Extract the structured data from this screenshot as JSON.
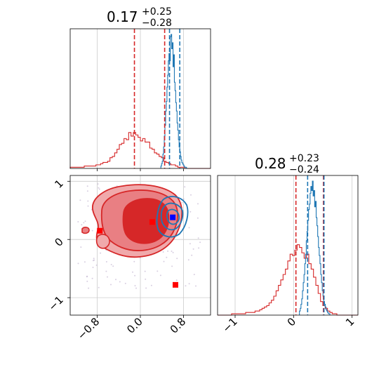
{
  "chart_data": {
    "type": "corner",
    "colors": {
      "red": "#d62728",
      "blue": "#1f77b4",
      "marker_red": "#ff0000",
      "marker_blue": "#0000ff",
      "grid": "#cccccc"
    },
    "panels": [
      {
        "id": "hist-x",
        "type": "histogram",
        "title": {
          "value": "0.17",
          "plus": "+0.25",
          "minus": "−0.28"
        },
        "xlim": [
          -1.3,
          1.3
        ],
        "xgrid": [
          -0.8,
          0,
          0.8
        ],
        "series": [
          {
            "color": "red",
            "bin_edges_range": [
              -1.3,
              1.3
            ],
            "bins": 60,
            "counts": [
              1,
              1,
              1,
              1,
              1,
              1,
              2,
              2,
              2,
              2,
              2,
              3,
              3,
              4,
              5,
              5,
              6,
              9,
              10,
              13,
              16,
              20,
              21,
              25,
              24,
              30,
              27,
              30,
              28,
              26,
              23,
              25,
              22,
              22,
              17,
              16,
              13,
              12,
              10,
              9,
              6,
              5,
              4,
              3,
              3,
              2,
              1,
              1,
              1,
              0,
              0,
              0,
              0,
              0,
              0,
              0,
              0,
              0,
              0,
              0
            ]
          },
          {
            "color": "blue",
            "bin_edges_range": [
              0.38,
              0.88
            ],
            "bins": 40,
            "counts": [
              2,
              4,
              6,
              12,
              18,
              27,
              36,
              48,
              56,
              68,
              78,
              90,
              96,
              90,
              110,
              112,
              100,
              105,
              85,
              95,
              72,
              65,
              55,
              48,
              38,
              32,
              24,
              18,
              14,
              10,
              7,
              5,
              4,
              3,
              2,
              1,
              1,
              1,
              0,
              0
            ]
          }
        ],
        "quantile_lines": [
          {
            "color": "red",
            "x": -0.11
          },
          {
            "color": "red",
            "x": 0.45
          },
          {
            "color": "blue",
            "x": 0.54
          },
          {
            "color": "blue",
            "x": 0.73
          }
        ]
      },
      {
        "id": "scatter-xy",
        "type": "contour",
        "xlim": [
          -1.3,
          1.3
        ],
        "ylim": [
          -1.3,
          1.1
        ],
        "xticks": [
          "−0.8",
          "0.0",
          "0.8"
        ],
        "xtick_values": [
          -0.8,
          0,
          0.8
        ],
        "yticks": [
          "1",
          "0",
          "−1"
        ],
        "ytick_values": [
          1,
          0,
          -1
        ],
        "red_markers": [
          {
            "x": -0.75,
            "y": 0.15
          },
          {
            "x": 0.22,
            "y": 0.3
          },
          {
            "x": 0.65,
            "y": -0.78
          }
        ],
        "blue_markers": [
          {
            "x": 0.6,
            "y": 0.38
          }
        ]
      },
      {
        "id": "hist-y",
        "type": "histogram",
        "title": {
          "value": "0.28",
          "plus": "+0.23",
          "minus": "−0.24"
        },
        "xlim": [
          -1.3,
          1.1
        ],
        "xticks": [
          "−1",
          "0",
          "1"
        ],
        "xtick_values": [
          -1,
          0,
          1
        ],
        "series": [
          {
            "color": "red",
            "bin_edges_range": [
              -1.3,
              1.1
            ],
            "bins": 60,
            "counts": [
              0,
              0,
              0,
              0,
              0,
              0,
              1,
              1,
              1,
              1,
              1,
              1,
              2,
              2,
              2,
              2,
              3,
              3,
              4,
              5,
              6,
              7,
              9,
              11,
              14,
              18,
              22,
              26,
              30,
              34,
              40,
              45,
              44,
              48,
              52,
              50,
              46,
              42,
              45,
              38,
              34,
              28,
              22,
              16,
              10,
              7,
              5,
              3,
              2,
              1,
              1,
              0,
              0,
              0,
              0,
              0,
              0,
              0,
              0,
              0
            ]
          },
          {
            "color": "blue",
            "bin_edges_range": [
              0.1,
              0.62
            ],
            "bins": 40,
            "counts": [
              3,
              5,
              8,
              12,
              18,
              24,
              30,
              38,
              45,
              55,
              62,
              70,
              78,
              82,
              90,
              95,
              92,
              99,
              88,
              92,
              80,
              84,
              72,
              66,
              58,
              50,
              44,
              38,
              30,
              24,
              18,
              14,
              10,
              8,
              6,
              4,
              3,
              2,
              1,
              1
            ]
          }
        ],
        "quantile_lines": [
          {
            "color": "red",
            "x": 0.04
          },
          {
            "color": "red",
            "x": 0.51
          },
          {
            "color": "blue",
            "x": 0.24
          },
          {
            "color": "blue",
            "x": 0.52
          }
        ]
      }
    ]
  }
}
